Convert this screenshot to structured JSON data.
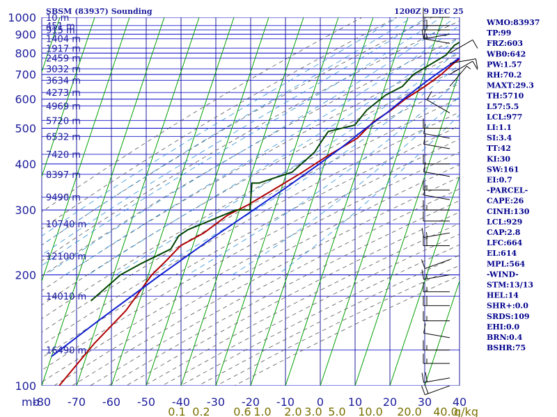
{
  "header": {
    "title": "SBSM (83937) Sounding",
    "datetime": "1200Z  9 DEC 25"
  },
  "colors": {
    "frame": "#1c1c9c",
    "isobar": "#0000c8",
    "isotherm": "#00a000",
    "dry_adiabat": "#555555",
    "moist_adiabat": "#2a8ed6",
    "mixing_ratio_label": "#7a7000",
    "temperature": "#b00000",
    "dewpoint": "#004400",
    "parcel": "#1020d0",
    "index_text": "#00008b",
    "wind_barb": "#000000"
  },
  "indices": [
    "WMO:83937",
    "TP:99",
    "FRZ:603",
    "WB0:642",
    "PW:1.57",
    "RH:70.2",
    "MAXT:29.3",
    "TH:5710",
    "L57:5.5",
    "LCL:977",
    "LI:1.1",
    "SI:3.4",
    "TT:42",
    "KI:30",
    "SW:161",
    "EI:0.7",
    "-PARCEL-",
    "CAPE:26",
    "CINH:130",
    "LCL:929",
    "CAP:2.8",
    "LFC:664",
    "EL:614",
    "MPL:564",
    "-WIND-",
    "STM:13/13",
    "HEL:14",
    "SHR+:0.0",
    "SRDS:109",
    "EHI:0.0",
    "BRN:0.4",
    "BSHR:75"
  ],
  "chart_data": {
    "type": "line",
    "diagram": "skew-T log-P",
    "y_axis": {
      "scale": "log",
      "range": [
        1000,
        100
      ],
      "ticks": [
        {
          "p": 100,
          "label": "100"
        },
        {
          "p": 200,
          "label": "200"
        },
        {
          "p": 300,
          "label": "300"
        },
        {
          "p": 400,
          "label": "400"
        },
        {
          "p": 500,
          "label": "500"
        },
        {
          "p": 600,
          "label": "600"
        },
        {
          "p": 700,
          "label": "700"
        },
        {
          "p": 800,
          "label": "800"
        },
        {
          "p": 900,
          "label": "900"
        },
        {
          "p": 1000,
          "label": "1000"
        }
      ],
      "unit_label": "mb"
    },
    "x_axis": {
      "range": [
        -80,
        40
      ],
      "ticks": [
        {
          "t": -80,
          "label": "-80"
        },
        {
          "t": -70,
          "label": "-70"
        },
        {
          "t": -60,
          "label": "-60"
        },
        {
          "t": -50,
          "label": "-50"
        },
        {
          "t": -40,
          "label": "-40"
        },
        {
          "t": -30,
          "label": "-30"
        },
        {
          "t": -20,
          "label": "-20"
        },
        {
          "t": -10,
          "label": "-10"
        },
        {
          "t": 0,
          "label": "0"
        },
        {
          "t": 10,
          "label": "10"
        },
        {
          "t": 20,
          "label": "20"
        },
        {
          "t": 30,
          "label": "30"
        },
        {
          "t": 40,
          "label": "40"
        }
      ]
    },
    "mixing_ratio_labels": [
      "0.1",
      "0.2",
      "0.6",
      "1.0",
      "2.0",
      "3.0",
      "5.0",
      "10.0",
      "20.0",
      "40.0"
    ],
    "mixing_ratio_unit": "g/kg",
    "height_labels": [
      {
        "p": 1000,
        "label": "10 m"
      },
      {
        "p": 950,
        "label": "451 m"
      },
      {
        "p": 925,
        "label": "915 m"
      },
      {
        "p": 875,
        "label": "1404 m"
      },
      {
        "p": 825,
        "label": "1917 m"
      },
      {
        "p": 775,
        "label": "2459 m"
      },
      {
        "p": 725,
        "label": "3032 m"
      },
      {
        "p": 675,
        "label": "3634 m"
      },
      {
        "p": 625,
        "label": "4273 m"
      },
      {
        "p": 575,
        "label": "4969 m"
      },
      {
        "p": 525,
        "label": "5720 m"
      },
      {
        "p": 475,
        "label": "6532 m"
      },
      {
        "p": 425,
        "label": "7420 m"
      },
      {
        "p": 375,
        "label": "8397 m"
      },
      {
        "p": 325,
        "label": "9490 m"
      },
      {
        "p": 275,
        "label": "10740 m"
      },
      {
        "p": 225,
        "label": "12100 m"
      },
      {
        "p": 175,
        "label": "14010 m"
      },
      {
        "p": 125,
        "label": "16490 m"
      }
    ],
    "series": [
      {
        "type": "temperature",
        "points": [
          [
            985,
            21
          ],
          [
            960,
            19.5
          ],
          [
            930,
            18
          ],
          [
            880,
            18.5
          ],
          [
            830,
            14
          ],
          [
            790,
            10
          ],
          [
            750,
            7.5
          ],
          [
            700,
            5
          ],
          [
            650,
            1.5
          ],
          [
            600,
            -3
          ],
          [
            560,
            -6
          ],
          [
            520,
            -10
          ],
          [
            470,
            -13
          ],
          [
            420,
            -20
          ],
          [
            380,
            -25.5
          ],
          [
            350,
            -30.5
          ],
          [
            310,
            -38
          ],
          [
            290,
            -43
          ],
          [
            260,
            -48
          ],
          [
            240,
            -53.5
          ],
          [
            220,
            -56
          ],
          [
            200,
            -59
          ],
          [
            160,
            -63
          ],
          [
            130,
            -69
          ],
          [
            100,
            -75
          ]
        ]
      },
      {
        "type": "dewpoint",
        "points": [
          [
            985,
            18
          ],
          [
            960,
            16
          ],
          [
            920,
            13
          ],
          [
            880,
            9
          ],
          [
            840,
            6
          ],
          [
            790,
            4.5
          ],
          [
            740,
            0.5
          ],
          [
            700,
            -3
          ],
          [
            650,
            -5
          ],
          [
            615,
            -9
          ],
          [
            560,
            -13
          ],
          [
            510,
            -15
          ],
          [
            490,
            -22
          ],
          [
            460,
            -23
          ],
          [
            430,
            -24
          ],
          [
            380,
            -28.5
          ],
          [
            355,
            -37
          ],
          [
            355,
            -39
          ],
          [
            300,
            -37
          ],
          [
            300,
            -41
          ],
          [
            265,
            -53
          ],
          [
            255,
            -55
          ],
          [
            235,
            -56
          ],
          [
            215,
            -63
          ],
          [
            200,
            -68
          ],
          [
            170,
            -74
          ]
        ]
      },
      {
        "type": "parcel",
        "points": [
          [
            985,
            20
          ],
          [
            950,
            18.5
          ],
          [
            900,
            16
          ],
          [
            850,
            13
          ],
          [
            800,
            10
          ],
          [
            750,
            7
          ],
          [
            700,
            3.5
          ],
          [
            650,
            0
          ],
          [
            600,
            -3.5
          ],
          [
            550,
            -7
          ],
          [
            500,
            -11.5
          ],
          [
            450,
            -16
          ],
          [
            400,
            -21.5
          ],
          [
            350,
            -28
          ],
          [
            300,
            -36
          ],
          [
            250,
            -45.5
          ],
          [
            200,
            -56.5
          ],
          [
            150,
            -70
          ],
          [
            120,
            -80
          ]
        ]
      }
    ],
    "wind_profile": [
      {
        "p": 1000,
        "dir": 270,
        "kt": 10
      },
      {
        "p": 950,
        "dir": 270,
        "kt": 15
      },
      {
        "p": 925,
        "dir": 270,
        "kt": 20
      },
      {
        "p": 900,
        "dir": 260,
        "kt": 15
      },
      {
        "p": 850,
        "dir": 280,
        "kt": 10
      },
      {
        "p": 800,
        "dir": 60,
        "kt": 10
      },
      {
        "p": 750,
        "dir": 80,
        "kt": 10
      },
      {
        "p": 700,
        "dir": 60,
        "kt": 10
      },
      {
        "p": 650,
        "dir": 40,
        "kt": 5
      },
      {
        "p": 550,
        "dir": 300,
        "kt": 10
      },
      {
        "p": 500,
        "dir": 270,
        "kt": 10
      },
      {
        "p": 470,
        "dir": 280,
        "kt": 10
      },
      {
        "p": 440,
        "dir": 280,
        "kt": 10
      },
      {
        "p": 400,
        "dir": 270,
        "kt": 10
      },
      {
        "p": 370,
        "dir": 280,
        "kt": 10
      },
      {
        "p": 340,
        "dir": 270,
        "kt": 15
      },
      {
        "p": 320,
        "dir": 280,
        "kt": 10
      },
      {
        "p": 300,
        "dir": 270,
        "kt": 15
      },
      {
        "p": 280,
        "dir": 270,
        "kt": 10
      },
      {
        "p": 260,
        "dir": 260,
        "kt": 15
      },
      {
        "p": 240,
        "dir": 270,
        "kt": 20
      },
      {
        "p": 220,
        "dir": 250,
        "kt": 10
      },
      {
        "p": 200,
        "dir": 260,
        "kt": 15
      },
      {
        "p": 180,
        "dir": 270,
        "kt": 15
      },
      {
        "p": 165,
        "dir": 270,
        "kt": 20
      },
      {
        "p": 150,
        "dir": 270,
        "kt": 15
      },
      {
        "p": 135,
        "dir": 280,
        "kt": 10
      },
      {
        "p": 125,
        "dir": 270,
        "kt": 15
      },
      {
        "p": 115,
        "dir": 270,
        "kt": 15
      },
      {
        "p": 105,
        "dir": 260,
        "kt": 20
      },
      {
        "p": 100,
        "dir": 250,
        "kt": 20
      }
    ]
  }
}
